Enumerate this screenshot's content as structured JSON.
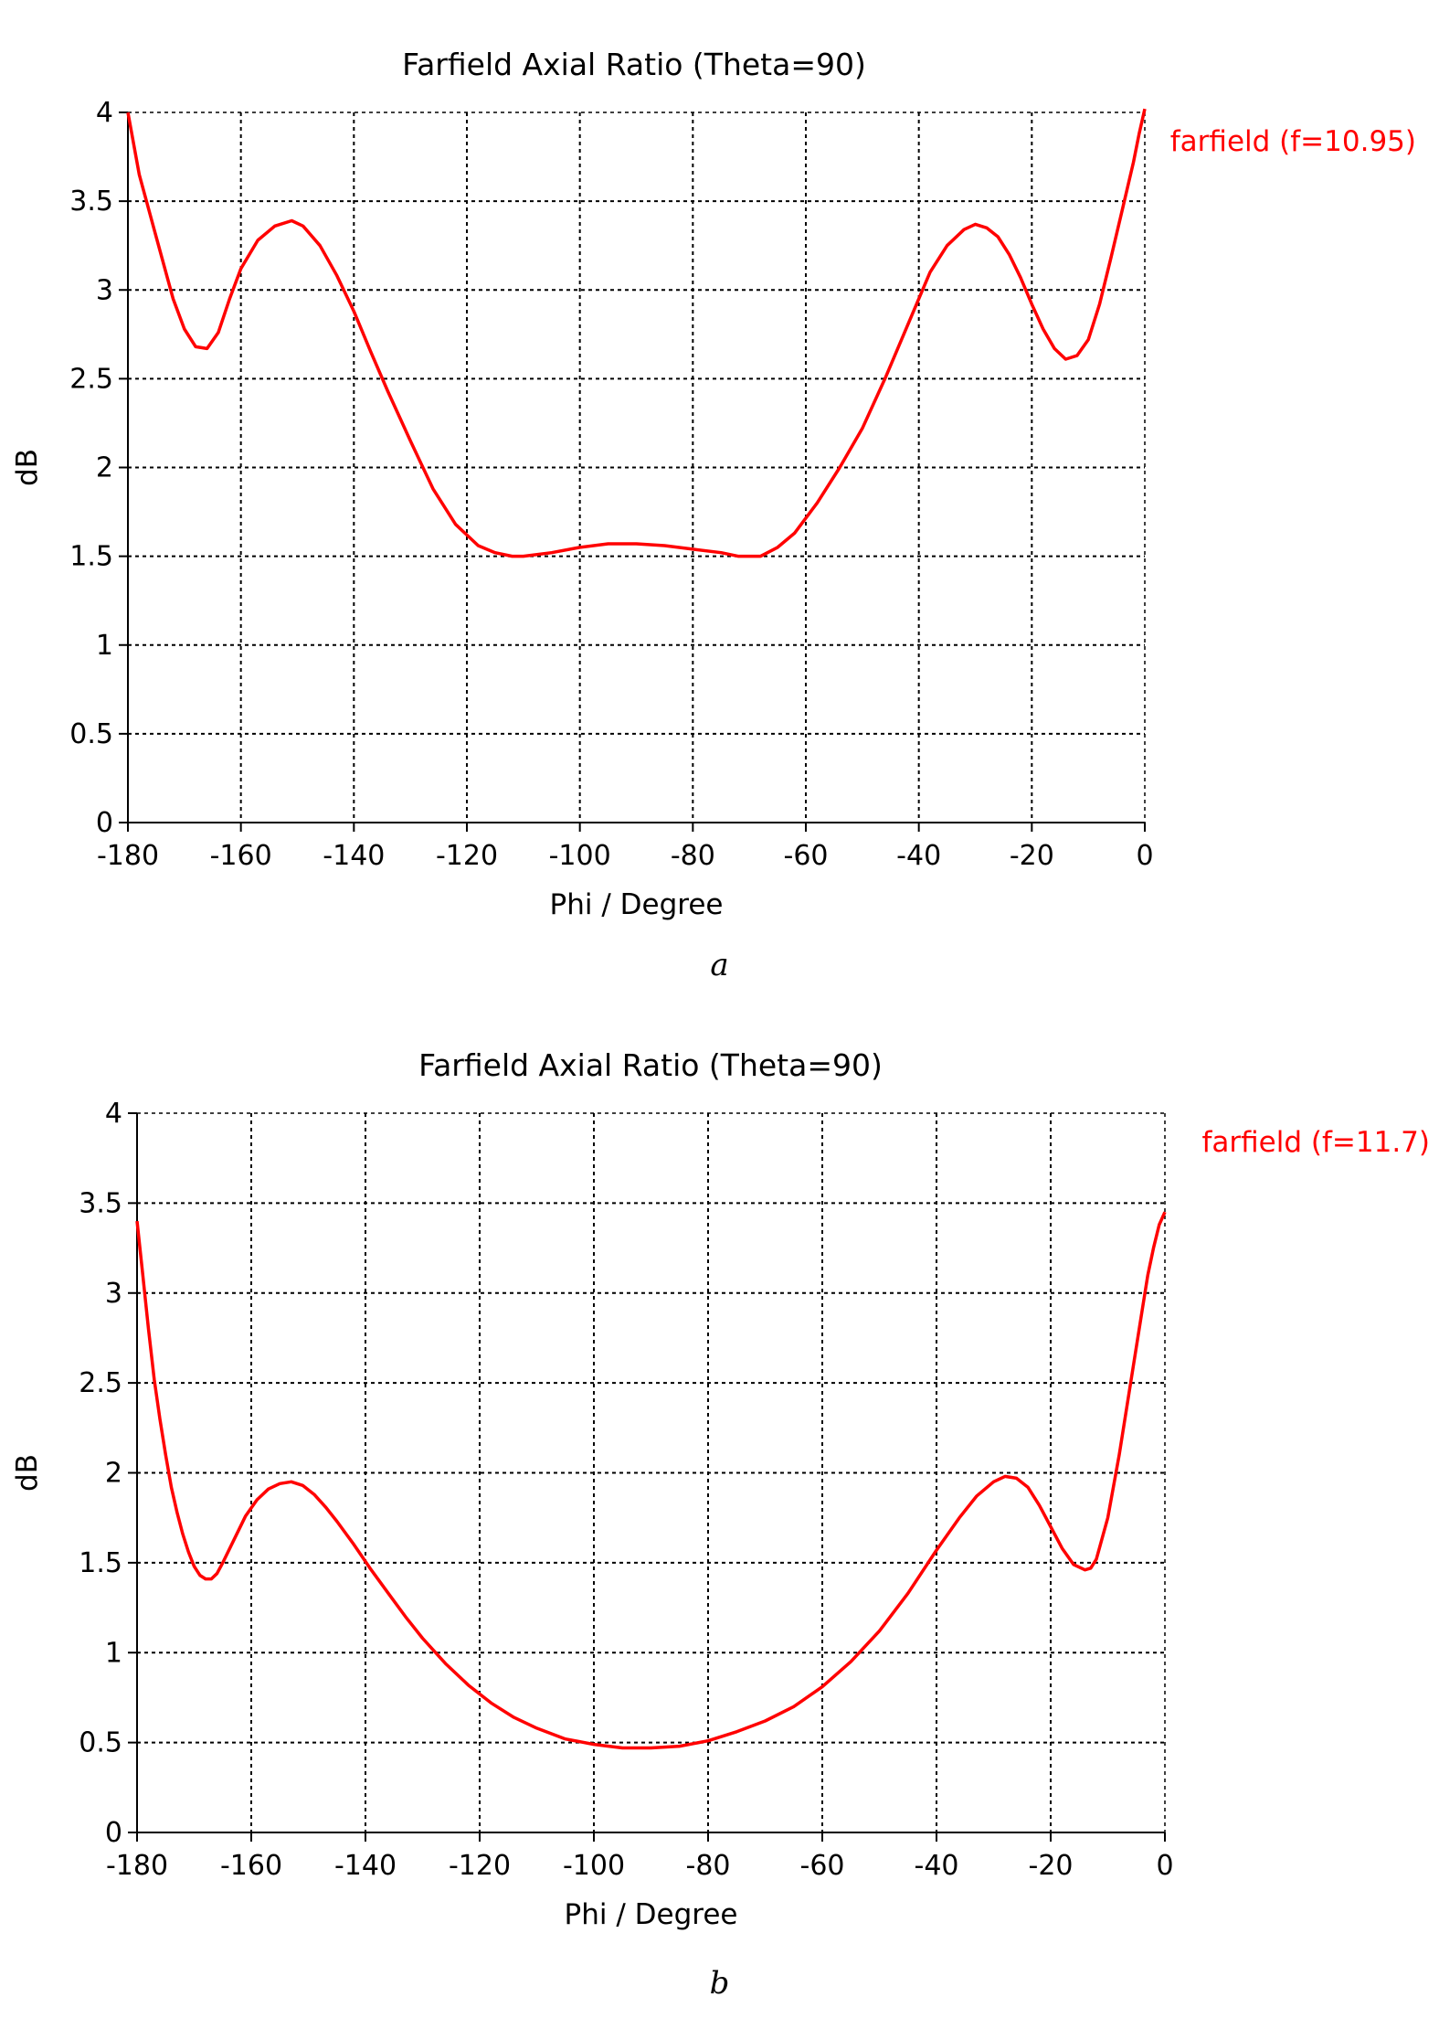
{
  "chart_data": [
    {
      "type": "line",
      "title": "Farfield  Axial Ratio (Theta=90)",
      "xlabel": "Phi / Degree",
      "ylabel": "dB",
      "xlim": [
        -180,
        0
      ],
      "ylim": [
        0,
        4
      ],
      "x_ticks": [
        -180,
        -160,
        -140,
        -120,
        -100,
        -80,
        -60,
        -40,
        -20,
        0
      ],
      "y_ticks": [
        0,
        0.5,
        1,
        1.5,
        2,
        2.5,
        3,
        3.5,
        4
      ],
      "x_tick_labels": [
        "-180",
        "-160",
        "-140",
        "-120",
        "-100",
        "-80",
        "-60",
        "-40",
        "-20",
        "0"
      ],
      "y_tick_labels": [
        "0",
        "0.5",
        "1",
        "1.5",
        "2",
        "2.5",
        "3",
        "3.5",
        "4"
      ],
      "grid": true,
      "legend": "top-right",
      "caption": "a",
      "series": [
        {
          "name": "farfield (f=10.95)",
          "color": "#ff0000",
          "x": [
            -180,
            -178,
            -175,
            -172,
            -170,
            -168,
            -166,
            -164,
            -162,
            -160,
            -157,
            -154,
            -151,
            -149,
            -146,
            -143,
            -140,
            -137,
            -134,
            -130,
            -126,
            -122,
            -118,
            -115,
            -112,
            -110,
            -105,
            -100,
            -95,
            -90,
            -85,
            -80,
            -75,
            -72,
            -70,
            -68,
            -65,
            -62,
            -58,
            -54,
            -50,
            -46,
            -42,
            -38,
            -35,
            -32,
            -30,
            -28,
            -26,
            -24,
            -22,
            -20,
            -18,
            -16,
            -14,
            -12,
            -10,
            -8,
            -6,
            -4,
            -2,
            -1,
            0
          ],
          "y": [
            4.0,
            3.65,
            3.3,
            2.95,
            2.78,
            2.68,
            2.67,
            2.76,
            2.95,
            3.12,
            3.28,
            3.36,
            3.39,
            3.36,
            3.25,
            3.08,
            2.88,
            2.65,
            2.43,
            2.15,
            1.88,
            1.68,
            1.56,
            1.52,
            1.5,
            1.5,
            1.52,
            1.55,
            1.57,
            1.57,
            1.56,
            1.54,
            1.52,
            1.5,
            1.5,
            1.5,
            1.55,
            1.63,
            1.8,
            2.0,
            2.22,
            2.5,
            2.8,
            3.1,
            3.25,
            3.34,
            3.37,
            3.35,
            3.3,
            3.2,
            3.07,
            2.92,
            2.78,
            2.67,
            2.61,
            2.63,
            2.72,
            2.92,
            3.18,
            3.45,
            3.72,
            3.88,
            4.02
          ]
        }
      ]
    },
    {
      "type": "line",
      "title": "Farfield  Axial Ratio (Theta=90)",
      "xlabel": "Phi / Degree",
      "ylabel": "dB",
      "xlim": [
        -180,
        0
      ],
      "ylim": [
        0,
        4
      ],
      "x_ticks": [
        -180,
        -160,
        -140,
        -120,
        -100,
        -80,
        -60,
        -40,
        -20,
        0
      ],
      "y_ticks": [
        0,
        0.5,
        1,
        1.5,
        2,
        2.5,
        3,
        3.5,
        4
      ],
      "x_tick_labels": [
        "-180",
        "-160",
        "-140",
        "-120",
        "-100",
        "-80",
        "-60",
        "-40",
        "-20",
        "0"
      ],
      "y_tick_labels": [
        "0",
        "0.5",
        "1",
        "1.5",
        "2",
        "2.5",
        "3",
        "3.5",
        "4"
      ],
      "grid": true,
      "legend": "top-right",
      "caption": "b",
      "series": [
        {
          "name": "farfield (f=11.7)",
          "color": "#ff0000",
          "x": [
            -180,
            -179,
            -178,
            -177,
            -176,
            -175,
            -174,
            -173,
            -172,
            -171,
            -170,
            -169,
            -168,
            -167,
            -166,
            -165,
            -163,
            -161,
            -159,
            -157,
            -155,
            -153,
            -151,
            -149,
            -147,
            -145,
            -142,
            -139,
            -136,
            -133,
            -130,
            -126,
            -122,
            -118,
            -114,
            -110,
            -105,
            -100,
            -95,
            -90,
            -85,
            -80,
            -75,
            -70,
            -65,
            -60,
            -55,
            -50,
            -45,
            -40,
            -36,
            -33,
            -30,
            -28,
            -26,
            -24,
            -22,
            -20,
            -18,
            -16,
            -14,
            -13,
            -12,
            -10,
            -8,
            -6,
            -4,
            -3,
            -2,
            -1,
            0
          ],
          "y": [
            3.4,
            3.1,
            2.8,
            2.52,
            2.3,
            2.1,
            1.92,
            1.78,
            1.66,
            1.56,
            1.48,
            1.43,
            1.41,
            1.41,
            1.44,
            1.5,
            1.63,
            1.76,
            1.85,
            1.91,
            1.94,
            1.95,
            1.93,
            1.88,
            1.81,
            1.73,
            1.6,
            1.46,
            1.33,
            1.2,
            1.08,
            0.94,
            0.82,
            0.72,
            0.64,
            0.58,
            0.52,
            0.49,
            0.47,
            0.47,
            0.48,
            0.51,
            0.56,
            0.62,
            0.7,
            0.81,
            0.95,
            1.12,
            1.33,
            1.57,
            1.75,
            1.87,
            1.95,
            1.98,
            1.97,
            1.92,
            1.82,
            1.7,
            1.58,
            1.49,
            1.46,
            1.47,
            1.52,
            1.75,
            2.1,
            2.5,
            2.9,
            3.1,
            3.25,
            3.38,
            3.45
          ]
        }
      ]
    }
  ]
}
